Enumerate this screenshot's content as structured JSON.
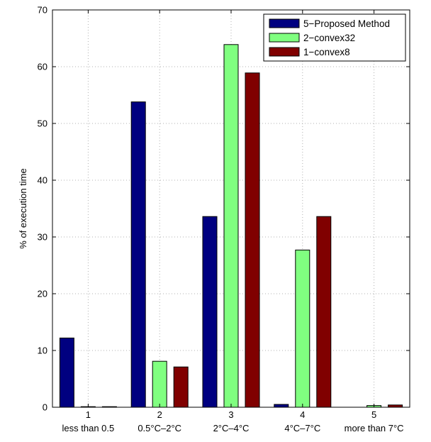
{
  "chart_data": {
    "type": "bar",
    "categories": [
      "1",
      "2",
      "3",
      "4",
      "5"
    ],
    "category_sublabels": [
      "less than 0.5",
      "0.5°C–2°C",
      "2°C–4°C",
      "4°C–7°C",
      "more than 7°C"
    ],
    "series": [
      {
        "name": "5−Proposed Method",
        "color": "#000080",
        "values": [
          12.2,
          53.8,
          33.6,
          0.5,
          0.0
        ]
      },
      {
        "name": "2−convex32",
        "color": "#80ff80",
        "values": [
          0.1,
          8.1,
          63.9,
          27.7,
          0.3
        ]
      },
      {
        "name": "1−convex8",
        "color": "#800000",
        "values": [
          0.1,
          7.1,
          58.9,
          33.6,
          0.4
        ]
      }
    ],
    "title": "",
    "xlabel": "",
    "ylabel": "% of execution time",
    "ylim": [
      0,
      70
    ],
    "yticks": [
      0,
      10,
      20,
      30,
      40,
      50,
      60,
      70
    ],
    "grid": true,
    "legend_position": "top-right"
  }
}
